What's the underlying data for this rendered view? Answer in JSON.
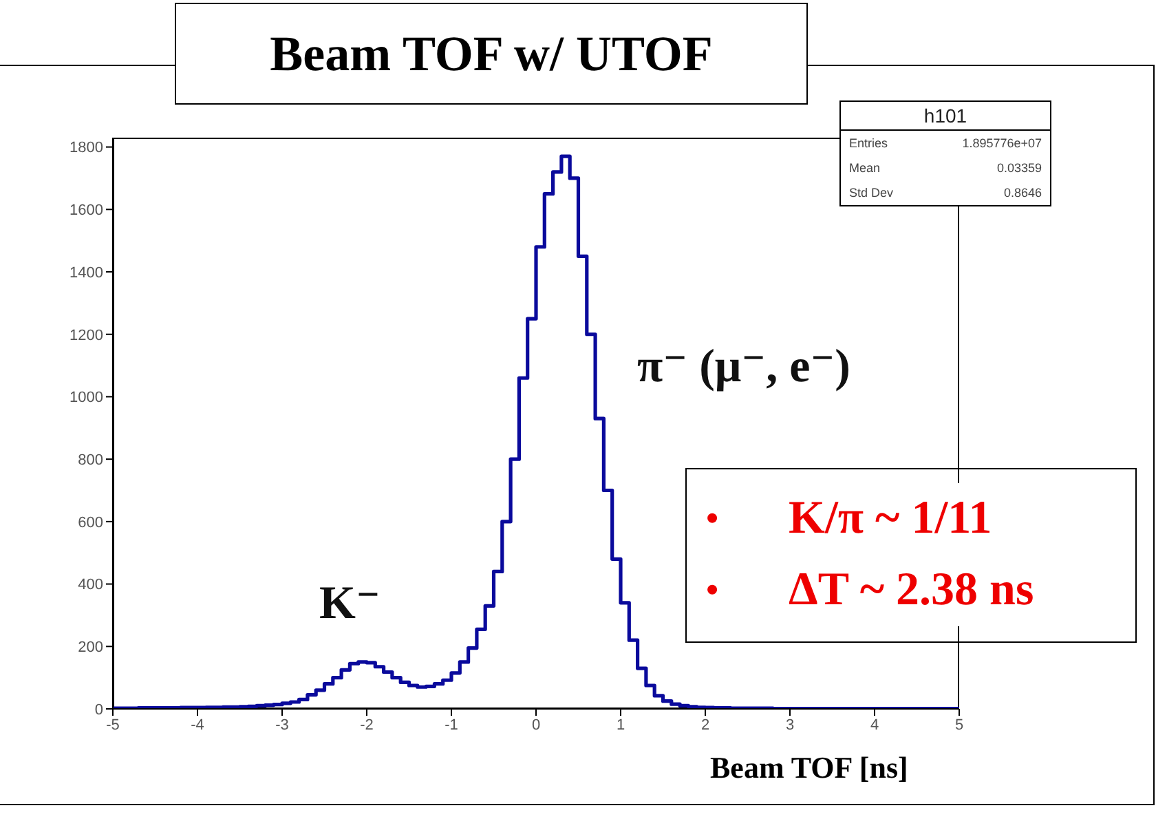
{
  "chart_data": {
    "type": "histogram",
    "title": "Beam TOF w/ UTOF",
    "xlabel": "Beam TOF [ns]",
    "bins": [
      -5,
      -4.9,
      -4.8,
      -4.7,
      -4.6,
      -4.5,
      -4.4,
      -4.3,
      -4.2,
      -4.1,
      -4,
      -3.9,
      -3.8,
      -3.7,
      -3.6,
      -3.5,
      -3.4,
      -3.3,
      -3.2,
      -3.1,
      -3,
      -2.9,
      -2.8,
      -2.7,
      -2.6,
      -2.5,
      -2.4,
      -2.3,
      -2.2,
      -2.1,
      -2,
      -1.9,
      -1.8,
      -1.7,
      -1.6,
      -1.5,
      -1.4,
      -1.3,
      -1.2,
      -1.1,
      -1,
      -0.9,
      -0.8,
      -0.7,
      -0.6,
      -0.5,
      -0.4,
      -0.3,
      -0.2,
      -0.1,
      0,
      0.1,
      0.2,
      0.3,
      0.4,
      0.5,
      0.6,
      0.7,
      0.8,
      0.9,
      1,
      1.1,
      1.2,
      1.3,
      1.4,
      1.5,
      1.6,
      1.7,
      1.8,
      1.9,
      2,
      2.1,
      2.2,
      2.3,
      2.4,
      2.5,
      2.6,
      2.7,
      2.8,
      2.9,
      3,
      3.1,
      3.2,
      3.3,
      3.4,
      3.5,
      3.6,
      3.7,
      3.8,
      3.9,
      4,
      4.1,
      4.2,
      4.3,
      4.4,
      4.5,
      4.6,
      4.7,
      4.8,
      4.9,
      5
    ],
    "values": [
      2,
      2,
      2,
      3,
      3,
      3,
      3,
      3,
      4,
      4,
      4,
      5,
      5,
      6,
      6,
      7,
      8,
      10,
      12,
      14,
      18,
      22,
      30,
      45,
      60,
      80,
      100,
      125,
      145,
      150,
      148,
      135,
      118,
      100,
      85,
      75,
      70,
      72,
      80,
      92,
      115,
      150,
      195,
      255,
      330,
      440,
      600,
      800,
      1060,
      1250,
      1480,
      1650,
      1720,
      1770,
      1700,
      1450,
      1200,
      930,
      700,
      480,
      340,
      220,
      130,
      75,
      42,
      25,
      15,
      10,
      7,
      5,
      4,
      3,
      3,
      2,
      2,
      2,
      2,
      2,
      1,
      1,
      1,
      1,
      1,
      1,
      1,
      1,
      1,
      1,
      1,
      1,
      1,
      1,
      1,
      1,
      1,
      1,
      1,
      1,
      1,
      1
    ],
    "color": "#0a0a9c",
    "xlim": [
      -5,
      5
    ],
    "xticks": [
      -5,
      -4,
      -3,
      -2,
      -1,
      0,
      1,
      2,
      3,
      4,
      5
    ],
    "ylim": [
      0,
      1830
    ],
    "yticks": [
      0,
      200,
      400,
      600,
      800,
      1000,
      1200,
      1400,
      1600,
      1800
    ],
    "grid": false,
    "legend": false,
    "annotations": [
      "h101",
      "Entries 1.895776e+07",
      "Mean 0.03359",
      "Std Dev 0.8646",
      "• K/π ~ 1/11",
      "• ΔT ~ 2.38 ns",
      "K⁻",
      "π⁻ (μ⁻, e⁻)"
    ]
  }
}
